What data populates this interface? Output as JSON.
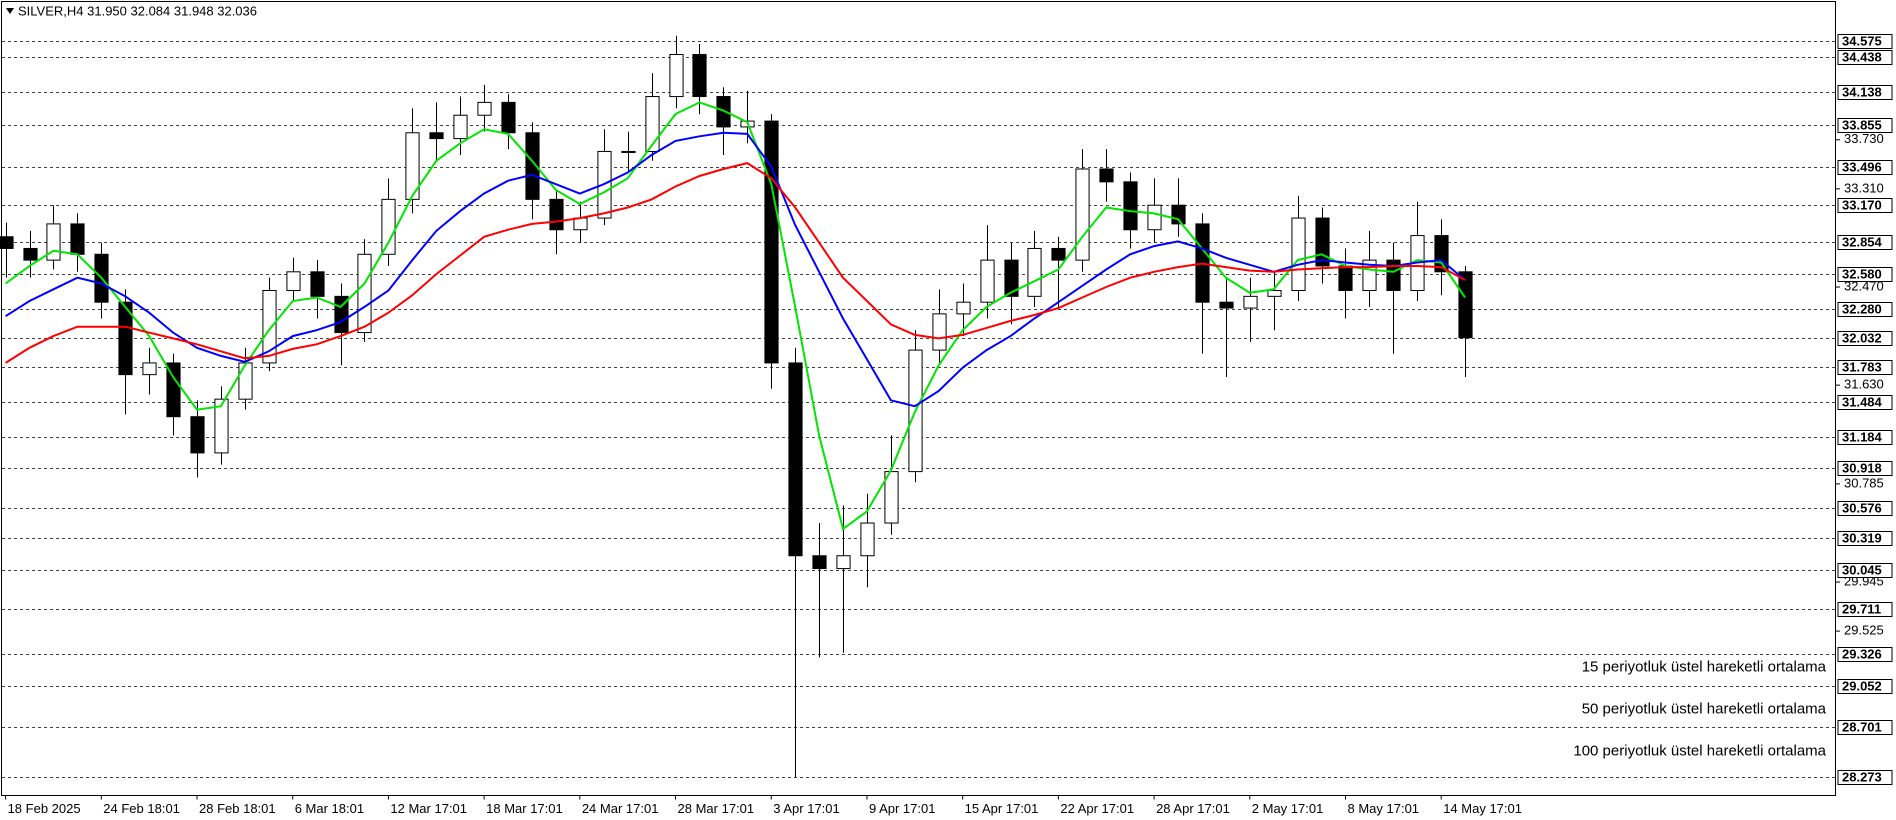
{
  "chart_data": {
    "type": "candlestick",
    "title": "SILVER,H4  31.950 32.084 31.948 32.036",
    "up_color": "#ffffff",
    "down_color": "#000000",
    "line_color": "#000000",
    "x": [
      0,
      1,
      2,
      3,
      4,
      5,
      6,
      7,
      8,
      9,
      10,
      11,
      12,
      13,
      14,
      15,
      16,
      17,
      18,
      19,
      20,
      21,
      22,
      23,
      24,
      25,
      26,
      27,
      28,
      29,
      30,
      31,
      32,
      33,
      34,
      35,
      36,
      37,
      38,
      39,
      40,
      41,
      42,
      43,
      44,
      45,
      46,
      47,
      48,
      49,
      50,
      51,
      52,
      53,
      54,
      55,
      56,
      57,
      58,
      59,
      60,
      61
    ],
    "open": [
      32.9,
      32.8,
      32.7,
      33.01,
      32.75,
      32.34,
      31.72,
      31.82,
      31.36,
      31.05,
      31.51,
      31.82,
      32.44,
      32.6,
      32.39,
      32.08,
      32.75,
      33.22,
      33.79,
      33.74,
      33.94,
      34.05,
      33.79,
      33.22,
      32.96,
      33.06,
      33.63,
      33.63,
      34.1,
      34.46,
      34.1,
      33.84,
      33.89,
      31.82,
      30.17,
      30.06,
      30.17,
      30.45,
      30.89,
      31.93,
      32.24,
      32.34,
      32.7,
      32.39,
      32.8,
      32.7,
      33.48,
      33.37,
      32.96,
      33.17,
      33.01,
      32.34,
      32.29,
      32.39,
      32.44,
      33.06,
      32.65,
      32.44,
      32.7,
      32.44,
      32.91,
      32.6
    ],
    "high": [
      33.02,
      32.95,
      33.17,
      33.1,
      32.85,
      32.45,
      31.95,
      31.9,
      31.5,
      31.62,
      31.95,
      32.55,
      32.72,
      32.7,
      32.5,
      32.88,
      33.4,
      34.0,
      34.05,
      34.1,
      34.2,
      34.12,
      33.88,
      33.3,
      33.2,
      33.82,
      33.8,
      34.3,
      34.62,
      34.55,
      34.18,
      34.15,
      33.95,
      31.95,
      30.45,
      30.6,
      30.7,
      31.2,
      32.1,
      32.45,
      32.5,
      33.0,
      32.85,
      32.95,
      32.9,
      33.65,
      33.65,
      33.45,
      33.4,
      33.4,
      33.1,
      32.55,
      32.55,
      32.6,
      33.25,
      33.15,
      32.8,
      32.95,
      32.85,
      33.2,
      33.05,
      32.65
    ],
    "low": [
      32.55,
      32.55,
      32.62,
      32.6,
      32.2,
      31.38,
      31.55,
      31.2,
      30.84,
      30.95,
      31.42,
      31.75,
      32.35,
      32.2,
      31.8,
      32.0,
      32.65,
      33.1,
      33.55,
      33.6,
      33.8,
      33.65,
      33.05,
      32.75,
      32.85,
      33.0,
      33.45,
      33.55,
      34.0,
      33.95,
      33.6,
      33.7,
      31.6,
      28.273,
      29.3,
      29.34,
      29.9,
      30.35,
      30.8,
      31.8,
      32.05,
      32.2,
      32.15,
      32.3,
      32.3,
      32.6,
      33.2,
      32.8,
      32.85,
      32.9,
      31.9,
      31.7,
      32.0,
      32.1,
      32.35,
      32.5,
      32.2,
      32.3,
      31.9,
      32.35,
      32.4,
      31.7
    ],
    "close": [
      32.8,
      32.7,
      33.01,
      32.75,
      32.34,
      31.72,
      31.82,
      31.36,
      31.05,
      31.51,
      31.82,
      32.44,
      32.6,
      32.39,
      32.08,
      32.75,
      33.22,
      33.79,
      33.74,
      33.94,
      34.05,
      33.79,
      33.22,
      32.96,
      33.06,
      33.63,
      33.63,
      34.1,
      34.46,
      34.1,
      33.84,
      33.89,
      31.82,
      30.17,
      30.06,
      30.17,
      30.45,
      30.89,
      31.93,
      32.24,
      32.34,
      32.7,
      32.39,
      32.8,
      32.7,
      33.48,
      33.37,
      32.96,
      33.17,
      33.01,
      32.34,
      32.29,
      32.39,
      32.44,
      33.06,
      32.65,
      32.44,
      32.7,
      32.44,
      32.91,
      32.6,
      32.036
    ],
    "series": [
      {
        "name": "15 periyotluk üstel hareketli ortalama",
        "color": "#00e600",
        "values": [
          32.5,
          32.65,
          32.78,
          32.75,
          32.55,
          32.3,
          32.05,
          31.7,
          31.42,
          31.45,
          31.8,
          32.1,
          32.35,
          32.38,
          32.3,
          32.5,
          32.85,
          33.25,
          33.55,
          33.7,
          33.82,
          33.78,
          33.55,
          33.3,
          33.18,
          33.28,
          33.4,
          33.68,
          33.95,
          34.05,
          33.98,
          33.88,
          33.35,
          32.3,
          31.2,
          30.4,
          30.55,
          30.9,
          31.4,
          31.8,
          32.1,
          32.3,
          32.42,
          32.52,
          32.62,
          32.9,
          33.15,
          33.12,
          33.1,
          33.05,
          32.8,
          32.55,
          32.42,
          32.45,
          32.7,
          32.75,
          32.65,
          32.62,
          32.6,
          32.7,
          32.68,
          32.38
        ]
      },
      {
        "name": "50 periyotluk üstel hareketli ortalama",
        "color": "#0000ff",
        "values": [
          32.22,
          32.35,
          32.45,
          32.55,
          32.5,
          32.39,
          32.25,
          32.08,
          31.95,
          31.88,
          31.83,
          31.92,
          32.05,
          32.1,
          32.17,
          32.3,
          32.44,
          32.7,
          32.95,
          33.12,
          33.27,
          33.38,
          33.43,
          33.35,
          33.27,
          33.35,
          33.45,
          33.6,
          33.72,
          33.76,
          33.79,
          33.78,
          33.5,
          33.0,
          32.6,
          32.2,
          31.85,
          31.5,
          31.45,
          31.58,
          31.78,
          31.93,
          32.05,
          32.2,
          32.34,
          32.48,
          32.62,
          32.75,
          32.82,
          32.86,
          32.8,
          32.72,
          32.66,
          32.6,
          32.66,
          32.7,
          32.68,
          32.66,
          32.65,
          32.68,
          32.7,
          32.53
        ]
      },
      {
        "name": "100 periyotluk üstel hareketli ortalama",
        "color": "#ff0000",
        "values": [
          31.82,
          31.95,
          32.05,
          32.13,
          32.13,
          32.13,
          32.08,
          32.03,
          31.98,
          31.92,
          31.86,
          31.88,
          31.94,
          31.98,
          32.05,
          32.13,
          32.25,
          32.4,
          32.58,
          32.74,
          32.9,
          32.96,
          33.01,
          33.03,
          33.06,
          33.1,
          33.15,
          33.22,
          33.33,
          33.42,
          33.48,
          33.53,
          33.4,
          33.15,
          32.85,
          32.55,
          32.35,
          32.15,
          32.06,
          32.03,
          32.06,
          32.12,
          32.18,
          32.23,
          32.29,
          32.38,
          32.47,
          32.55,
          32.6,
          32.64,
          32.67,
          32.64,
          32.61,
          32.6,
          32.62,
          32.63,
          32.64,
          32.64,
          32.65,
          32.65,
          32.64,
          32.53
        ]
      }
    ],
    "legend": "lower right",
    "xlim": [
      -0.15,
      76.5
    ],
    "xticks": [
      {
        "value": 0,
        "label": "18 Feb 2025"
      },
      {
        "value": 4,
        "label": "24 Feb 18:01"
      },
      {
        "value": 8,
        "label": "28 Feb 18:01"
      },
      {
        "value": 12,
        "label": "6 Mar 18:01"
      },
      {
        "value": 16,
        "label": "12 Mar 17:01"
      },
      {
        "value": 20,
        "label": "18 Mar 17:01"
      },
      {
        "value": 24,
        "label": "24 Mar 17:01"
      },
      {
        "value": 28,
        "label": "28 Mar 17:01"
      },
      {
        "value": 32,
        "label": "3 Apr 17:01"
      },
      {
        "value": 36,
        "label": "9 Apr 17:01"
      },
      {
        "value": 40,
        "label": "15 Apr 17:01"
      },
      {
        "value": 44,
        "label": "22 Apr 17:01"
      },
      {
        "value": 48,
        "label": "28 Apr 17:01"
      },
      {
        "value": 52,
        "label": "2 May 17:01"
      },
      {
        "value": 56,
        "label": "8 May 17:01"
      },
      {
        "value": 60,
        "label": "14 May 17:01"
      }
    ],
    "ylim": [
      28.118,
      34.916
    ],
    "yticks": [
      {
        "value": 33.73,
        "label": "33.730"
      },
      {
        "value": 33.31,
        "label": "33.310"
      },
      {
        "value": 32.47,
        "label": "32.470"
      },
      {
        "value": 31.63,
        "label": "31.630"
      },
      30.785,
      29.945,
      29.525
    ],
    "price_levels": [
      34.575,
      34.438,
      34.138,
      33.855,
      33.496,
      {
        "value": 33.17,
        "label": "33.170"
      },
      32.854,
      {
        "value": 32.58,
        "label": "32.580"
      },
      {
        "value": 32.28,
        "label": "32.280"
      },
      32.032,
      31.783,
      31.484,
      31.184,
      30.918,
      30.576,
      30.319,
      30.045,
      29.711,
      29.326,
      29.052,
      28.701,
      28.273
    ]
  }
}
